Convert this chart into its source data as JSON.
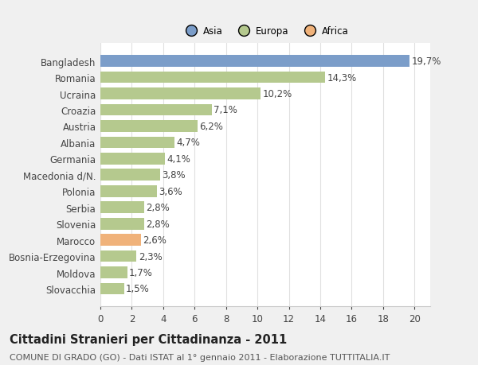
{
  "categories": [
    "Bangladesh",
    "Romania",
    "Ucraina",
    "Croazia",
    "Austria",
    "Albania",
    "Germania",
    "Macedonia d/N.",
    "Polonia",
    "Serbia",
    "Slovenia",
    "Marocco",
    "Bosnia-Erzegovina",
    "Moldova",
    "Slovacchia"
  ],
  "values": [
    19.7,
    14.3,
    10.2,
    7.1,
    6.2,
    4.7,
    4.1,
    3.8,
    3.6,
    2.8,
    2.8,
    2.6,
    2.3,
    1.7,
    1.5
  ],
  "labels": [
    "19,7%",
    "14,3%",
    "10,2%",
    "7,1%",
    "6,2%",
    "4,7%",
    "4,1%",
    "3,8%",
    "3,6%",
    "2,8%",
    "2,8%",
    "2,6%",
    "2,3%",
    "1,7%",
    "1,5%"
  ],
  "colors": [
    "#7b9dc9",
    "#b5c98e",
    "#b5c98e",
    "#b5c98e",
    "#b5c98e",
    "#b5c98e",
    "#b5c98e",
    "#b5c98e",
    "#b5c98e",
    "#b5c98e",
    "#b5c98e",
    "#f0b27a",
    "#b5c98e",
    "#b5c98e",
    "#b5c98e"
  ],
  "continent_colors": {
    "Asia": "#7b9dc9",
    "Europa": "#b5c98e",
    "Africa": "#f0b27a"
  },
  "title": "Cittadini Stranieri per Cittadinanza - 2011",
  "subtitle": "COMUNE DI GRADO (GO) - Dati ISTAT al 1° gennaio 2011 - Elaborazione TUTTITALIA.IT",
  "xlim": [
    0,
    21
  ],
  "xticks": [
    0,
    2,
    4,
    6,
    8,
    10,
    12,
    14,
    16,
    18,
    20
  ],
  "background_color": "#f0f0f0",
  "plot_bg_color": "#ffffff",
  "grid_color": "#e0e0e0",
  "label_fontsize": 8.5,
  "tick_fontsize": 8.5,
  "title_fontsize": 10.5,
  "subtitle_fontsize": 8.0
}
